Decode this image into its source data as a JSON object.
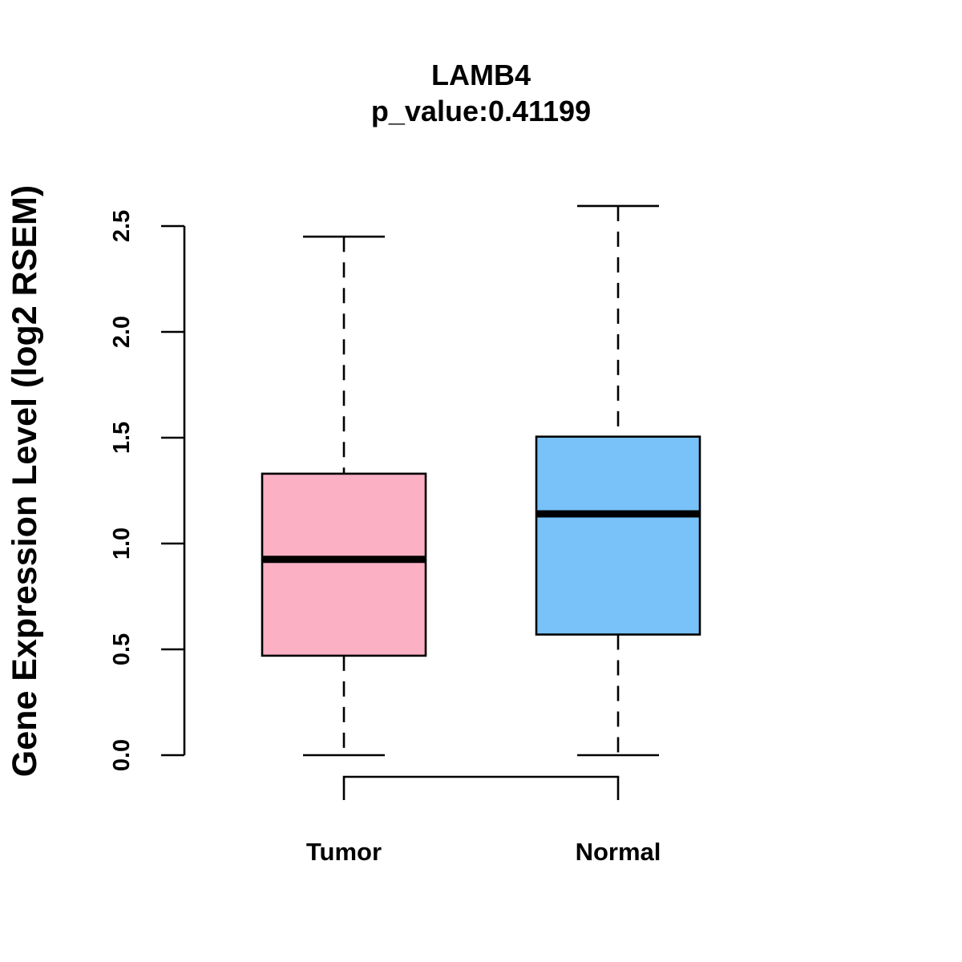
{
  "chart_data": {
    "type": "boxplot",
    "title": "LAMB4",
    "subtitle": "p_value:0.41199",
    "xlabel": "",
    "ylabel": "Gene Expression Level (log2 RSEM)",
    "ylim": [
      0,
      2.5
    ],
    "yticks": [
      "0.0",
      "0.5",
      "1.0",
      "1.5",
      "2.0",
      "2.5"
    ],
    "grid": false,
    "legend": "none",
    "categories": [
      "Tumor",
      "Normal"
    ],
    "boxes": [
      {
        "name": "Tumor",
        "color": "#FBB0C3",
        "min": 0.0,
        "q1": 0.47,
        "median": 0.925,
        "q3": 1.33,
        "max": 2.45
      },
      {
        "name": "Normal",
        "color": "#78C1F9",
        "min": 0.0,
        "q1": 0.57,
        "median": 1.14,
        "q3": 1.505,
        "max": 2.595
      }
    ],
    "comparison_bracket": {
      "from": "Tumor",
      "to": "Normal"
    }
  }
}
